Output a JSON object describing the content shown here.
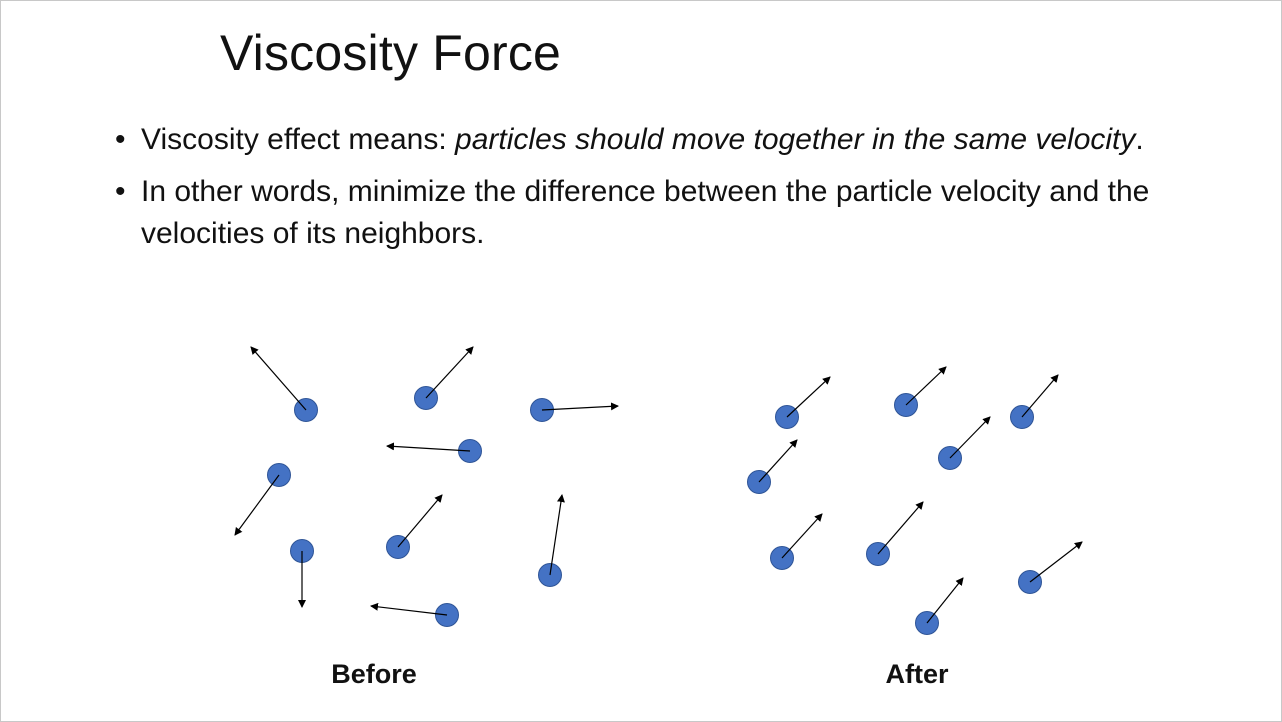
{
  "slide": {
    "title": "Viscosity Force",
    "bullets": [
      {
        "marker": "•",
        "text_plain": "Viscosity effect means: ",
        "text_italic": "particles should move together in the same velocity",
        "text_tail": "."
      },
      {
        "marker": "•",
        "text_plain": "In other words, minimize the difference between the particle velocity and the velocities of its neighbors.",
        "text_italic": "",
        "text_tail": ""
      }
    ],
    "captions": {
      "before": "Before",
      "after": "After"
    },
    "colors": {
      "particle": "#4472C4",
      "particle_edge": "#2F5597",
      "arrow": "#000000"
    }
  }
}
